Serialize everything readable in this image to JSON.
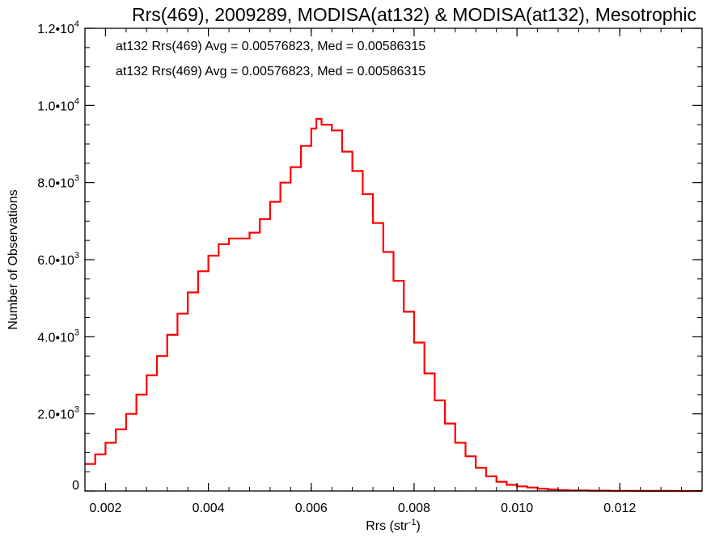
{
  "chart_data": {
    "type": "line",
    "title": "Rrs(469), 2009289, MODISA(at132) & MODISA(at132), Mesotrophic",
    "xlabel": {
      "base": "Rrs (str",
      "sup": "-1",
      "suffix": ")"
    },
    "ylabel": "Number of Observations",
    "xlim": [
      0.0016,
      0.0136
    ],
    "ylim": [
      0,
      12000
    ],
    "grid": false,
    "x_ticks": [
      {
        "value": 0.002,
        "label": "0.002"
      },
      {
        "value": 0.004,
        "label": "0.004"
      },
      {
        "value": 0.006,
        "label": "0.006"
      },
      {
        "value": 0.008,
        "label": "0.008"
      },
      {
        "value": 0.01,
        "label": "0.010"
      },
      {
        "value": 0.012,
        "label": "0.012"
      }
    ],
    "y_ticks": [
      {
        "value": 0,
        "label": "0",
        "exp": ""
      },
      {
        "value": 2000,
        "label": "2.0•10",
        "exp": "3"
      },
      {
        "value": 4000,
        "label": "4.0•10",
        "exp": "3"
      },
      {
        "value": 6000,
        "label": "6.0•10",
        "exp": "3"
      },
      {
        "value": 8000,
        "label": "8.0•10",
        "exp": "3"
      },
      {
        "value": 10000,
        "label": "1.0•10",
        "exp": "4"
      },
      {
        "value": 12000,
        "label": "1.2•10",
        "exp": "4"
      }
    ],
    "annotations": [
      {
        "text": "at132 Rrs(469) Avg = 0.00576823, Med = 0.00586315",
        "color": "#000000"
      },
      {
        "text": "at132 Rrs(469) Avg = 0.00576823, Med = 0.00586315",
        "color": "#ff0000"
      }
    ],
    "series": [
      {
        "color": "#ff0000",
        "step": true,
        "x": [
          0.0016,
          0.0018,
          0.002,
          0.0022,
          0.0024,
          0.0026,
          0.0028,
          0.003,
          0.0032,
          0.0034,
          0.0036,
          0.0038,
          0.004,
          0.0042,
          0.0044,
          0.0046,
          0.0048,
          0.005,
          0.0052,
          0.0054,
          0.0056,
          0.0058,
          0.006,
          0.0061,
          0.0062,
          0.0064,
          0.0066,
          0.0068,
          0.007,
          0.0072,
          0.0074,
          0.0076,
          0.0078,
          0.008,
          0.0082,
          0.0084,
          0.0086,
          0.0088,
          0.009,
          0.0092,
          0.0094,
          0.0096,
          0.0098,
          0.01,
          0.0102,
          0.0104,
          0.0106,
          0.0108,
          0.011,
          0.0114,
          0.0118,
          0.0122,
          0.0126,
          0.013,
          0.0136
        ],
        "y": [
          700,
          950,
          1250,
          1600,
          2000,
          2500,
          3000,
          3500,
          4050,
          4600,
          5150,
          5700,
          6100,
          6400,
          6550,
          6550,
          6700,
          7050,
          7500,
          8000,
          8400,
          8950,
          9400,
          9650,
          9500,
          9350,
          8800,
          8300,
          7700,
          6950,
          6200,
          5450,
          4650,
          3850,
          3050,
          2350,
          1750,
          1250,
          900,
          600,
          380,
          240,
          160,
          120,
          90,
          60,
          40,
          25,
          15,
          8,
          5,
          3,
          2,
          1,
          0
        ]
      }
    ]
  }
}
